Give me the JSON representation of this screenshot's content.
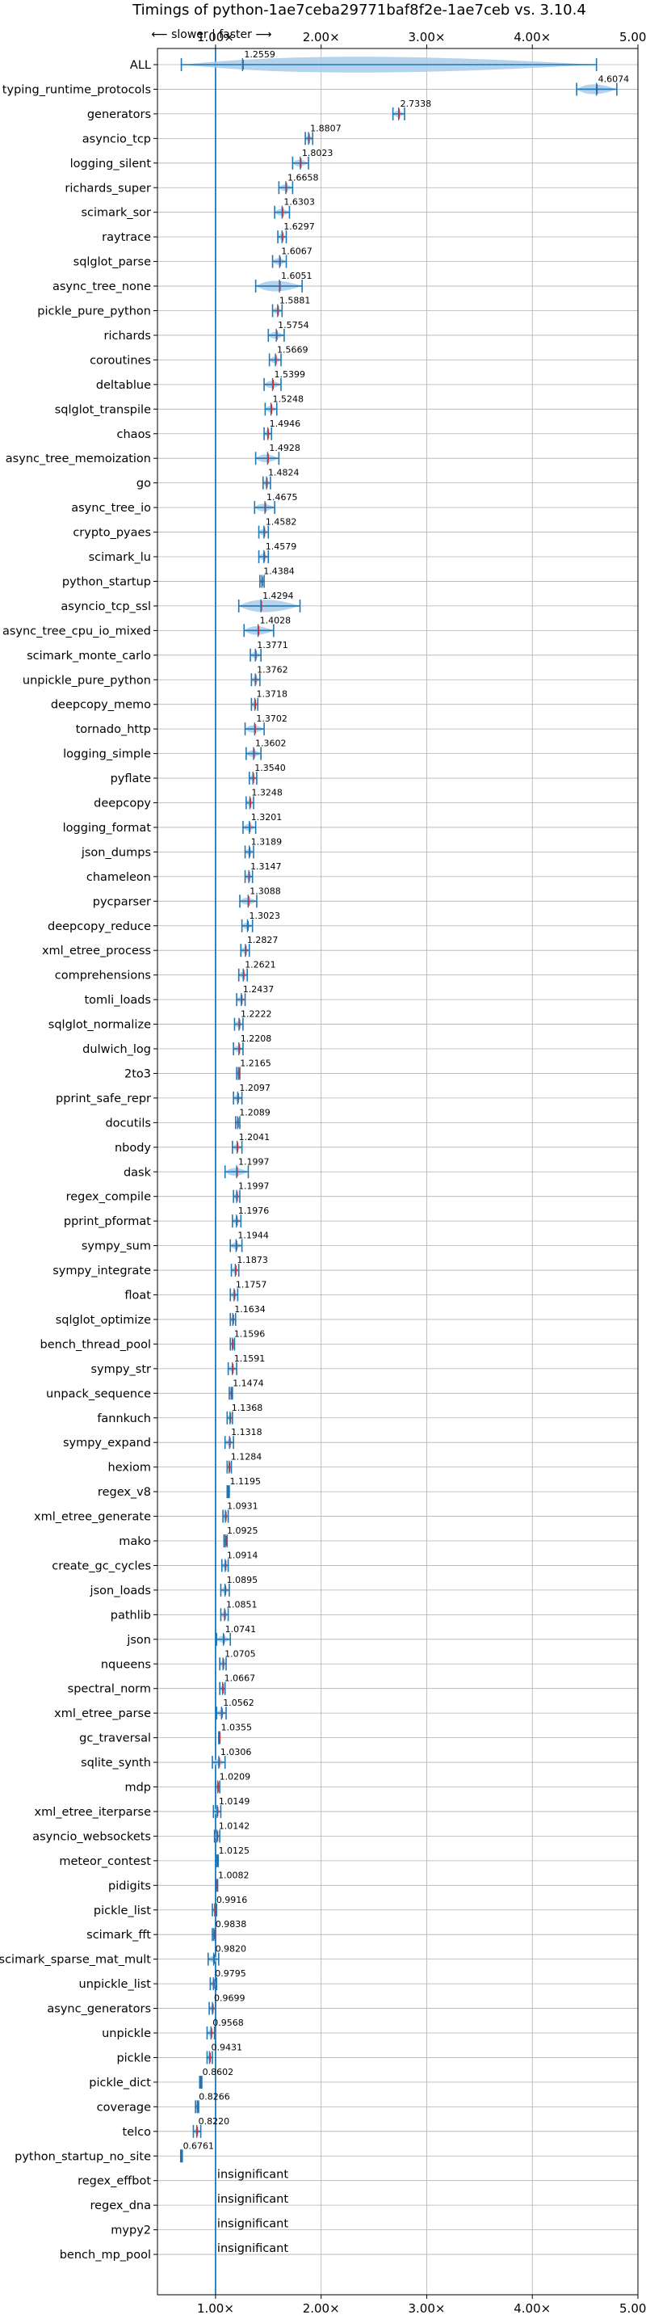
{
  "chart_data": {
    "type": "violin",
    "title": "Timings of python-1ae7ceba29771baf8f2e-1ae7ceb vs. 3.10.4",
    "direction_label": "⟵ slower | faster ⟶",
    "xlim": [
      0.45,
      5.0
    ],
    "baseline": 1.0,
    "xticks": [
      1.0,
      2.0,
      3.0,
      4.0,
      5.0
    ],
    "xtick_labels": [
      "1.00×",
      "2.00×",
      "3.00×",
      "4.00×",
      "5.00×"
    ],
    "grid": true,
    "colors": {
      "violin": "#a8cbea",
      "whisker": "#1f77b4",
      "median": "#1f77b4",
      "mean": "#d62728",
      "grid": "#b0b0b0"
    },
    "insignificant_text": "insignificant",
    "benchmarks": [
      {
        "name": "ALL",
        "value": 1.2559,
        "min": 0.6761,
        "max": 4.6074,
        "spread": 0.32
      },
      {
        "name": "typing_runtime_protocols",
        "value": 4.6074,
        "min": 4.42,
        "max": 4.8,
        "spread": 0.22
      },
      {
        "name": "generators",
        "value": 2.7338,
        "min": 2.68,
        "max": 2.79,
        "spread": 0.05
      },
      {
        "name": "asyncio_tcp",
        "value": 1.8807,
        "min": 1.85,
        "max": 1.92,
        "spread": 0.04
      },
      {
        "name": "logging_silent",
        "value": 1.8023,
        "min": 1.73,
        "max": 1.88,
        "spread": 0.08
      },
      {
        "name": "richards_super",
        "value": 1.6658,
        "min": 1.6,
        "max": 1.73,
        "spread": 0.07
      },
      {
        "name": "scimark_sor",
        "value": 1.6303,
        "min": 1.56,
        "max": 1.7,
        "spread": 0.07
      },
      {
        "name": "raytrace",
        "value": 1.6297,
        "min": 1.59,
        "max": 1.67,
        "spread": 0.04
      },
      {
        "name": "sqlglot_parse",
        "value": 1.6067,
        "min": 1.54,
        "max": 1.67,
        "spread": 0.07
      },
      {
        "name": "async_tree_none",
        "value": 1.6051,
        "min": 1.38,
        "max": 1.82,
        "spread": 0.25
      },
      {
        "name": "pickle_pure_python",
        "value": 1.5881,
        "min": 1.54,
        "max": 1.63,
        "spread": 0.05
      },
      {
        "name": "richards",
        "value": 1.5754,
        "min": 1.5,
        "max": 1.65,
        "spread": 0.07
      },
      {
        "name": "coroutines",
        "value": 1.5669,
        "min": 1.51,
        "max": 1.62,
        "spread": 0.06
      },
      {
        "name": "deltablue",
        "value": 1.5399,
        "min": 1.46,
        "max": 1.62,
        "spread": 0.08
      },
      {
        "name": "sqlglot_transpile",
        "value": 1.5248,
        "min": 1.47,
        "max": 1.58,
        "spread": 0.06
      },
      {
        "name": "chaos",
        "value": 1.4946,
        "min": 1.46,
        "max": 1.53,
        "spread": 0.04
      },
      {
        "name": "async_tree_memoization",
        "value": 1.4928,
        "min": 1.38,
        "max": 1.6,
        "spread": 0.12
      },
      {
        "name": "go",
        "value": 1.4824,
        "min": 1.45,
        "max": 1.52,
        "spread": 0.04
      },
      {
        "name": "async_tree_io",
        "value": 1.4675,
        "min": 1.37,
        "max": 1.56,
        "spread": 0.1
      },
      {
        "name": "crypto_pyaes",
        "value": 1.4582,
        "min": 1.41,
        "max": 1.5,
        "spread": 0.05
      },
      {
        "name": "scimark_lu",
        "value": 1.4579,
        "min": 1.41,
        "max": 1.5,
        "spread": 0.05
      },
      {
        "name": "python_startup",
        "value": 1.4384,
        "min": 1.42,
        "max": 1.46,
        "spread": 0.02
      },
      {
        "name": "asyncio_tcp_ssl",
        "value": 1.4294,
        "min": 1.22,
        "max": 1.8,
        "spread": 0.3
      },
      {
        "name": "async_tree_cpu_io_mixed",
        "value": 1.4028,
        "min": 1.27,
        "max": 1.55,
        "spread": 0.14
      },
      {
        "name": "scimark_monte_carlo",
        "value": 1.3771,
        "min": 1.33,
        "max": 1.43,
        "spread": 0.05
      },
      {
        "name": "unpickle_pure_python",
        "value": 1.3762,
        "min": 1.34,
        "max": 1.42,
        "spread": 0.04
      },
      {
        "name": "deepcopy_memo",
        "value": 1.3718,
        "min": 1.34,
        "max": 1.4,
        "spread": 0.03
      },
      {
        "name": "tornado_http",
        "value": 1.3702,
        "min": 1.28,
        "max": 1.46,
        "spread": 0.09
      },
      {
        "name": "logging_simple",
        "value": 1.3602,
        "min": 1.29,
        "max": 1.43,
        "spread": 0.07
      },
      {
        "name": "pyflate",
        "value": 1.354,
        "min": 1.32,
        "max": 1.39,
        "spread": 0.04
      },
      {
        "name": "deepcopy",
        "value": 1.3248,
        "min": 1.29,
        "max": 1.36,
        "spread": 0.04
      },
      {
        "name": "logging_format",
        "value": 1.3201,
        "min": 1.26,
        "max": 1.38,
        "spread": 0.06
      },
      {
        "name": "json_dumps",
        "value": 1.3189,
        "min": 1.28,
        "max": 1.36,
        "spread": 0.04
      },
      {
        "name": "chameleon",
        "value": 1.3147,
        "min": 1.28,
        "max": 1.35,
        "spread": 0.04
      },
      {
        "name": "pycparser",
        "value": 1.3088,
        "min": 1.23,
        "max": 1.39,
        "spread": 0.08
      },
      {
        "name": "deepcopy_reduce",
        "value": 1.3023,
        "min": 1.25,
        "max": 1.35,
        "spread": 0.05
      },
      {
        "name": "xml_etree_process",
        "value": 1.2827,
        "min": 1.24,
        "max": 1.32,
        "spread": 0.04
      },
      {
        "name": "comprehensions",
        "value": 1.2621,
        "min": 1.22,
        "max": 1.3,
        "spread": 0.04
      },
      {
        "name": "tomli_loads",
        "value": 1.2437,
        "min": 1.2,
        "max": 1.28,
        "spread": 0.04
      },
      {
        "name": "sqlglot_normalize",
        "value": 1.2222,
        "min": 1.18,
        "max": 1.26,
        "spread": 0.04
      },
      {
        "name": "dulwich_log",
        "value": 1.2208,
        "min": 1.17,
        "max": 1.26,
        "spread": 0.05
      },
      {
        "name": "2to3",
        "value": 1.2165,
        "min": 1.2,
        "max": 1.23,
        "spread": 0.02
      },
      {
        "name": "pprint_safe_repr",
        "value": 1.2097,
        "min": 1.17,
        "max": 1.25,
        "spread": 0.04
      },
      {
        "name": "docutils",
        "value": 1.2089,
        "min": 1.19,
        "max": 1.23,
        "spread": 0.02
      },
      {
        "name": "nbody",
        "value": 1.2041,
        "min": 1.16,
        "max": 1.25,
        "spread": 0.05
      },
      {
        "name": "dask",
        "value": 1.1997,
        "min": 1.09,
        "max": 1.31,
        "spread": 0.12
      },
      {
        "name": "regex_compile",
        "value": 1.1997,
        "min": 1.17,
        "max": 1.23,
        "spread": 0.03
      },
      {
        "name": "pprint_pformat",
        "value": 1.1976,
        "min": 1.16,
        "max": 1.24,
        "spread": 0.04
      },
      {
        "name": "sympy_sum",
        "value": 1.1944,
        "min": 1.14,
        "max": 1.25,
        "spread": 0.05
      },
      {
        "name": "sympy_integrate",
        "value": 1.1873,
        "min": 1.15,
        "max": 1.22,
        "spread": 0.03
      },
      {
        "name": "float",
        "value": 1.1757,
        "min": 1.14,
        "max": 1.21,
        "spread": 0.04
      },
      {
        "name": "sqlglot_optimize",
        "value": 1.1634,
        "min": 1.14,
        "max": 1.19,
        "spread": 0.03
      },
      {
        "name": "bench_thread_pool",
        "value": 1.1596,
        "min": 1.14,
        "max": 1.18,
        "spread": 0.02
      },
      {
        "name": "sympy_str",
        "value": 1.1591,
        "min": 1.12,
        "max": 1.2,
        "spread": 0.04
      },
      {
        "name": "unpack_sequence",
        "value": 1.1474,
        "min": 1.13,
        "max": 1.16,
        "spread": 0.02
      },
      {
        "name": "fannkuch",
        "value": 1.1368,
        "min": 1.11,
        "max": 1.16,
        "spread": 0.03
      },
      {
        "name": "sympy_expand",
        "value": 1.1318,
        "min": 1.09,
        "max": 1.17,
        "spread": 0.04
      },
      {
        "name": "hexiom",
        "value": 1.1284,
        "min": 1.11,
        "max": 1.15,
        "spread": 0.02
      },
      {
        "name": "regex_v8",
        "value": 1.1195,
        "min": 1.11,
        "max": 1.13,
        "spread": 0.01
      },
      {
        "name": "xml_etree_generate",
        "value": 1.0931,
        "min": 1.07,
        "max": 1.12,
        "spread": 0.02
      },
      {
        "name": "mako",
        "value": 1.0925,
        "min": 1.08,
        "max": 1.11,
        "spread": 0.01
      },
      {
        "name": "create_gc_cycles",
        "value": 1.0914,
        "min": 1.06,
        "max": 1.12,
        "spread": 0.03
      },
      {
        "name": "json_loads",
        "value": 1.0895,
        "min": 1.05,
        "max": 1.13,
        "spread": 0.04
      },
      {
        "name": "pathlib",
        "value": 1.0851,
        "min": 1.05,
        "max": 1.12,
        "spread": 0.03
      },
      {
        "name": "json",
        "value": 1.0741,
        "min": 1.01,
        "max": 1.14,
        "spread": 0.06
      },
      {
        "name": "nqueens",
        "value": 1.0705,
        "min": 1.04,
        "max": 1.1,
        "spread": 0.03
      },
      {
        "name": "spectral_norm",
        "value": 1.0667,
        "min": 1.04,
        "max": 1.09,
        "spread": 0.02
      },
      {
        "name": "xml_etree_parse",
        "value": 1.0562,
        "min": 1.01,
        "max": 1.1,
        "spread": 0.04
      },
      {
        "name": "gc_traversal",
        "value": 1.0355,
        "min": 1.03,
        "max": 1.04,
        "spread": 0.005
      },
      {
        "name": "sqlite_synth",
        "value": 1.0306,
        "min": 0.97,
        "max": 1.09,
        "spread": 0.06
      },
      {
        "name": "mdp",
        "value": 1.0209,
        "min": 1.0,
        "max": 1.04,
        "spread": 0.02
      },
      {
        "name": "xml_etree_iterparse",
        "value": 1.0149,
        "min": 0.98,
        "max": 1.05,
        "spread": 0.03
      },
      {
        "name": "asyncio_websockets",
        "value": 1.0142,
        "min": 0.99,
        "max": 1.04,
        "spread": 0.02
      },
      {
        "name": "meteor_contest",
        "value": 1.0125,
        "min": 1.0,
        "max": 1.025,
        "spread": 0.01
      },
      {
        "name": "pidigits",
        "value": 1.0082,
        "min": 1.0,
        "max": 1.02,
        "spread": 0.006
      },
      {
        "name": "pickle_list",
        "value": 0.9916,
        "min": 0.97,
        "max": 1.01,
        "spread": 0.02
      },
      {
        "name": "scimark_fft",
        "value": 0.9838,
        "min": 0.97,
        "max": 1.0,
        "spread": 0.015
      },
      {
        "name": "scimark_sparse_mat_mult",
        "value": 0.982,
        "min": 0.93,
        "max": 1.03,
        "spread": 0.05
      },
      {
        "name": "unpickle_list",
        "value": 0.9795,
        "min": 0.95,
        "max": 1.01,
        "spread": 0.03
      },
      {
        "name": "async_generators",
        "value": 0.9699,
        "min": 0.94,
        "max": 1.0,
        "spread": 0.03
      },
      {
        "name": "unpickle",
        "value": 0.9568,
        "min": 0.92,
        "max": 0.99,
        "spread": 0.03
      },
      {
        "name": "pickle",
        "value": 0.9431,
        "min": 0.92,
        "max": 0.97,
        "spread": 0.02
      },
      {
        "name": "pickle_dict",
        "value": 0.8602,
        "min": 0.85,
        "max": 0.87,
        "spread": 0.008
      },
      {
        "name": "coverage",
        "value": 0.8266,
        "min": 0.81,
        "max": 0.84,
        "spread": 0.01
      },
      {
        "name": "telco",
        "value": 0.822,
        "min": 0.79,
        "max": 0.86,
        "spread": 0.03
      },
      {
        "name": "python_startup_no_site",
        "value": 0.6761,
        "min": 0.67,
        "max": 0.685,
        "spread": 0.005
      },
      {
        "name": "regex_effbot",
        "value": null
      },
      {
        "name": "regex_dna",
        "value": null
      },
      {
        "name": "mypy2",
        "value": null
      },
      {
        "name": "bench_mp_pool",
        "value": null
      }
    ]
  }
}
